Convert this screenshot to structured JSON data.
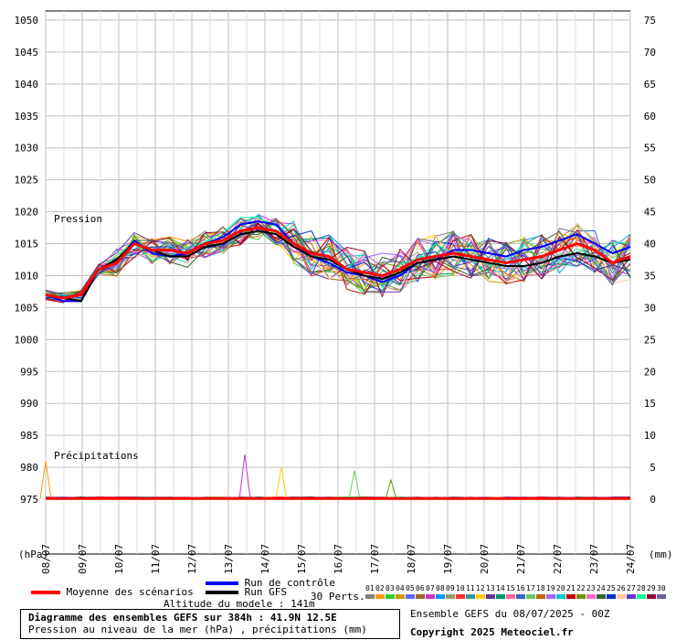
{
  "chart_data": {
    "type": "line",
    "left_axis": {
      "min": 975,
      "max": 1050,
      "step": 5,
      "ticks": [
        1050,
        1045,
        1040,
        1035,
        1030,
        1025,
        1020,
        1015,
        1010,
        1005,
        1000,
        995,
        990,
        985,
        980,
        975
      ]
    },
    "right_axis": {
      "ticks": [
        75,
        70,
        65,
        60,
        55,
        50,
        45,
        40,
        35,
        30,
        25,
        20,
        15,
        10,
        5,
        0
      ]
    },
    "left_unit": "(hPa)",
    "right_unit": "(mm)",
    "x_categories": [
      "08/07",
      "09/07",
      "10/07",
      "11/07",
      "12/07",
      "13/07",
      "14/07",
      "15/07",
      "16/07",
      "17/07",
      "18/07",
      "19/07",
      "20/07",
      "21/07",
      "22/07",
      "23/07",
      "24/07"
    ],
    "pressure_label": "Pression",
    "precip_label": "Précipitations",
    "mean_pressure": [
      1007,
      1006.5,
      1007,
      1011,
      1012,
      1015,
      1014,
      1014,
      1013.5,
      1015,
      1015.5,
      1017,
      1017.5,
      1017,
      1015,
      1013.5,
      1013,
      1011,
      1010.5,
      1010,
      1011,
      1012.5,
      1013,
      1013.5,
      1013,
      1012.5,
      1012,
      1012.5,
      1013,
      1014,
      1015,
      1014,
      1012,
      1013
    ],
    "control_pressure": [
      1007,
      1006,
      1006,
      1011,
      1012,
      1015.5,
      1013.5,
      1013,
      1013.5,
      1015,
      1016,
      1018,
      1018.5,
      1018,
      1015,
      1013,
      1012,
      1010.5,
      1010,
      1009,
      1010,
      1012,
      1012.5,
      1014,
      1014,
      1013.5,
      1013,
      1014,
      1014.5,
      1015.5,
      1016.5,
      1015,
      1013.5,
      1014.5
    ],
    "gfs_pressure": [
      1007,
      1006.5,
      1006,
      1011,
      1012.5,
      1015,
      1014,
      1013,
      1013,
      1014.5,
      1015,
      1016.5,
      1017,
      1016.5,
      1014.5,
      1013,
      1012.5,
      1011,
      1010,
      1009.5,
      1010.5,
      1012,
      1012.5,
      1013,
      1012.5,
      1012,
      1011.5,
      1011.5,
      1012,
      1013,
      1013.5,
      1013,
      1012,
      1012.5
    ],
    "perturbation_colors": [
      "#808080",
      "#ff9900",
      "#33cc33",
      "#cc9900",
      "#6666ff",
      "#996633",
      "#cc33cc",
      "#0099ff",
      "#999966",
      "#ff3333",
      "#339999",
      "#ffcc00",
      "#663399",
      "#009966",
      "#ff6699",
      "#3366cc",
      "#66cc66",
      "#cc6600",
      "#9966ff",
      "#00cccc",
      "#cc0000",
      "#669900",
      "#ff66cc",
      "#336633",
      "#0033cc",
      "#ffcc99",
      "#6633cc",
      "#00ff99",
      "#990033",
      "#666699"
    ],
    "precip_spikes": [
      {
        "x": "08/07",
        "mm": 6
      },
      {
        "x": "13/07",
        "mm": 7
      },
      {
        "x": "14/07",
        "mm": 5
      },
      {
        "x": "16/07",
        "mm": 4.5
      },
      {
        "x": "17/07",
        "mm": 3
      }
    ]
  },
  "legend": {
    "mean_label": "Moyenne des scénarios",
    "control_label": "Run de contrôle",
    "gfs_label": "Run GFS",
    "perts_label": "30 Perts.",
    "pert_numbers": [
      "01",
      "02",
      "03",
      "04",
      "05",
      "06",
      "07",
      "08",
      "09",
      "10",
      "11",
      "12",
      "13",
      "14",
      "15",
      "16",
      "17",
      "18",
      "19",
      "20",
      "21",
      "22",
      "23",
      "24",
      "25",
      "26",
      "27",
      "28",
      "29",
      "30"
    ],
    "altitude": "Altitude du modele : 141m",
    "ensemble_info": "Ensemble GEFS du 08/07/2025 - 00Z",
    "copyright": "Copyright 2025 Meteociel.fr",
    "title_line1": "Diagramme des ensembles GEFS sur 384h : 41.9N 12.5E",
    "title_line2": "Pression au niveau de la mer (hPa) , précipitations (mm)"
  },
  "colors": {
    "mean": "#ff0000",
    "control": "#0000ff",
    "gfs": "#000000",
    "grid": "#c0c0c0"
  }
}
